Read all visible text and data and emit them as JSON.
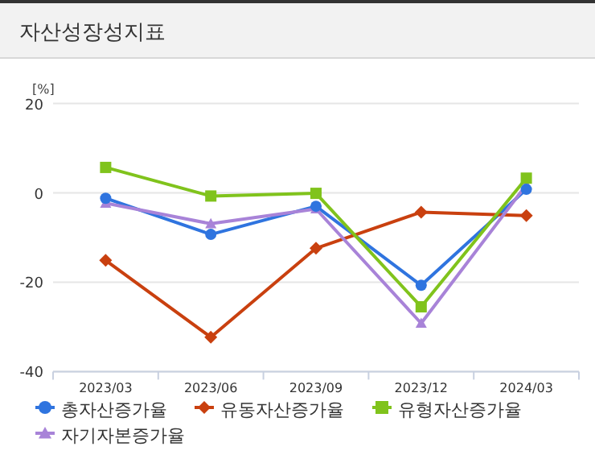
{
  "chart_data": {
    "type": "line",
    "title": "자산성장성지표",
    "ylabel": "[%]",
    "categories": [
      "2023/03",
      "2023/06",
      "2023/09",
      "2023/12",
      "2024/03"
    ],
    "series": [
      {
        "name": "총자산증가율",
        "color": "#2f74df",
        "marker": "circle",
        "values": [
          -1.2,
          -9.3,
          -3.0,
          -20.7,
          0.8
        ]
      },
      {
        "name": "유동자산증가율",
        "color": "#c9400f",
        "marker": "diamond",
        "values": [
          -15.1,
          -32.3,
          -12.4,
          -4.3,
          -5.1
        ]
      },
      {
        "name": "유형자산증가율",
        "color": "#80c31c",
        "marker": "square",
        "values": [
          5.7,
          -0.7,
          -0.1,
          -25.5,
          3.3
        ]
      },
      {
        "name": "자기자본증가율",
        "color": "#a883d8",
        "marker": "triangle",
        "values": [
          -2.3,
          -6.9,
          -3.6,
          -29.2,
          1.8
        ]
      }
    ],
    "ylim": [
      -40,
      20
    ],
    "yticks": [
      -40,
      -20,
      0,
      20
    ],
    "grid": "y",
    "legend": "bottom",
    "line_style": "solid"
  }
}
